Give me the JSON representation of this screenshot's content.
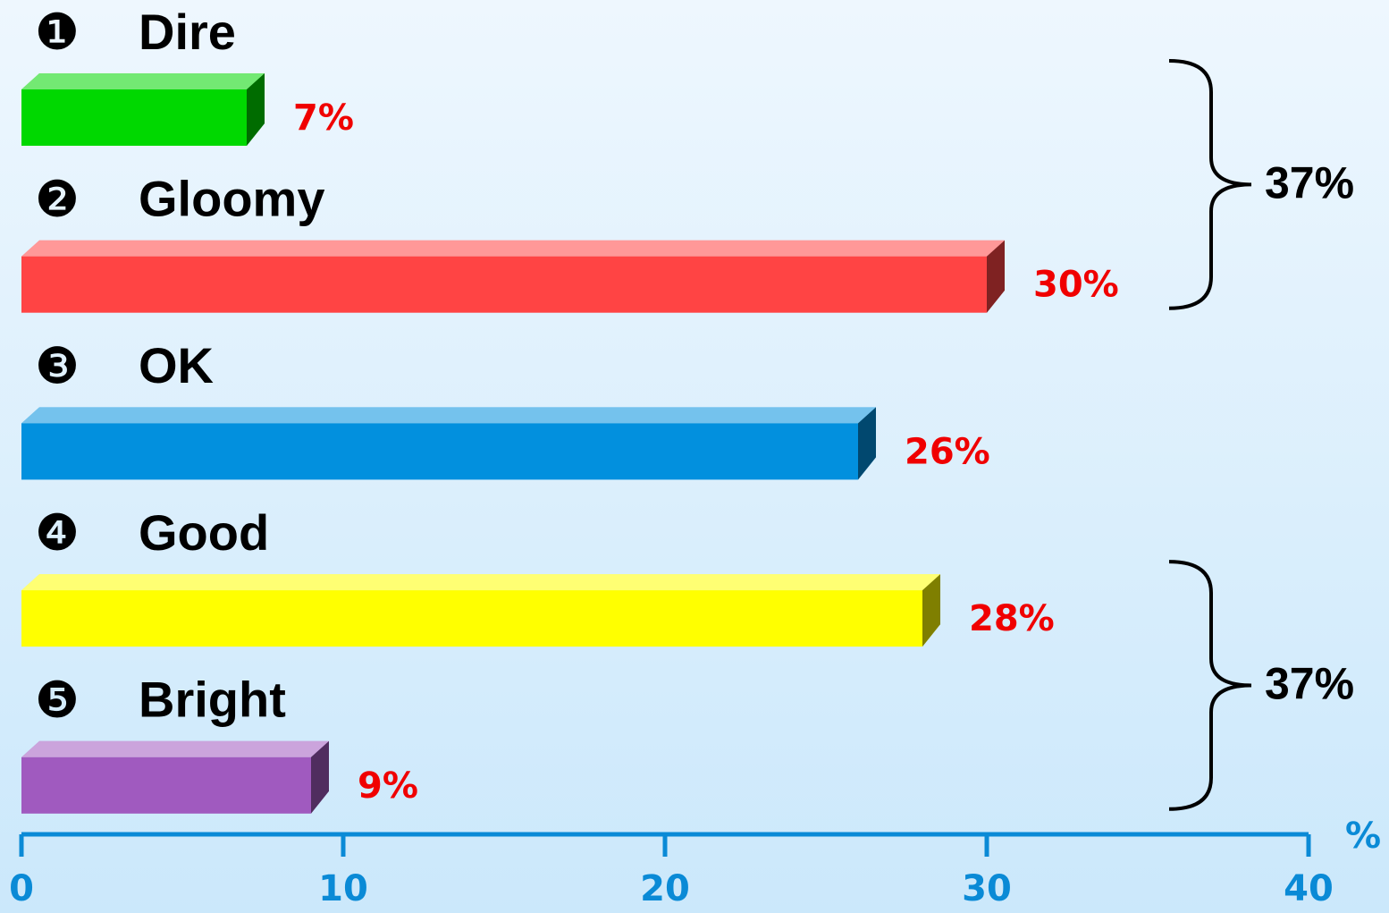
{
  "chart_data": {
    "type": "bar",
    "orientation": "horizontal",
    "markers": [
      "❶",
      "❷",
      "❸",
      "❹",
      "❺"
    ],
    "categories": [
      "Dire",
      "Gloomy",
      "OK",
      "Good",
      "Bright"
    ],
    "values": [
      7,
      30,
      26,
      28,
      9
    ],
    "value_labels": [
      "7%",
      "30%",
      "26%",
      "28%",
      "9%"
    ],
    "colors": [
      "#00d800",
      "#ff4444",
      "#0290de",
      "#ffff00",
      "#a05abf"
    ],
    "xlim": [
      0,
      40
    ],
    "xticks": [
      0,
      10,
      20,
      30,
      40
    ],
    "x_label": "%",
    "annotations": [
      {
        "text": "37%",
        "span": [
          "Dire",
          "Gloomy"
        ]
      },
      {
        "text": "37%",
        "span": [
          "Good",
          "Bright"
        ]
      }
    ]
  }
}
